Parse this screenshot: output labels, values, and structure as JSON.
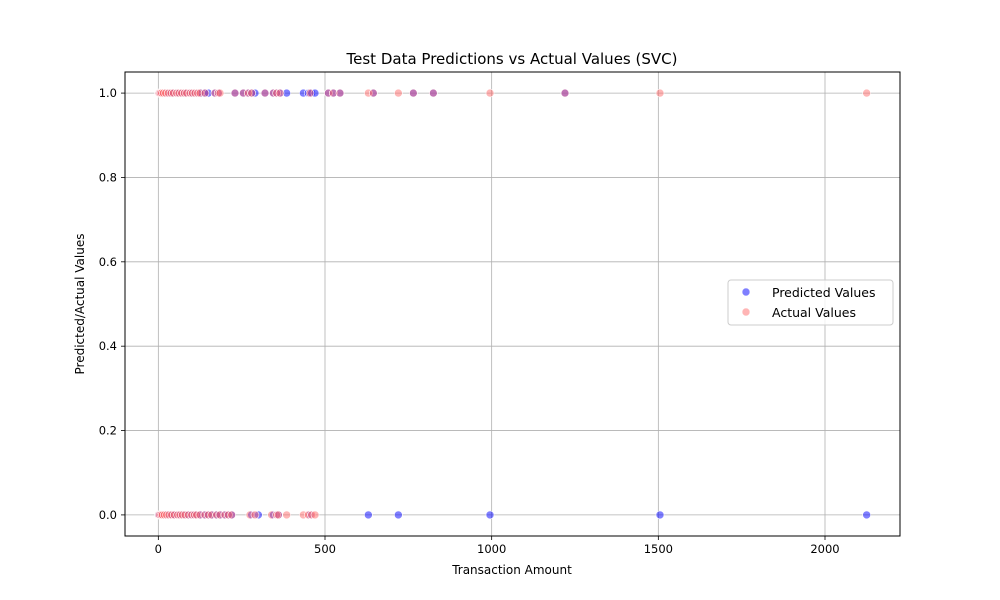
{
  "chart_data": {
    "type": "scatter",
    "title": "Test Data Predictions vs Actual Values (SVC)",
    "xlabel": "Transaction Amount",
    "ylabel": "Predicted/Actual Values",
    "xlim": [
      -100,
      2225
    ],
    "ylim": [
      -0.05,
      1.05
    ],
    "xticks": [
      0,
      500,
      1000,
      1500,
      2000
    ],
    "yticks": [
      0.0,
      0.2,
      0.4,
      0.6,
      0.8,
      1.0
    ],
    "xtick_labels": [
      "0",
      "500",
      "1000",
      "1500",
      "2000"
    ],
    "ytick_labels": [
      "0.0",
      "0.2",
      "0.4",
      "0.6",
      "0.8",
      "1.0"
    ],
    "grid": true,
    "legend_position": "center-right",
    "series": [
      {
        "name": "Predicted Values",
        "color": "#0000ff",
        "alpha": 0.5,
        "points": [
          [
            1,
            1
          ],
          [
            3,
            1
          ],
          [
            6,
            1
          ],
          [
            10,
            1
          ],
          [
            15,
            1
          ],
          [
            22,
            1
          ],
          [
            30,
            1
          ],
          [
            38,
            1
          ],
          [
            45,
            1
          ],
          [
            55,
            1
          ],
          [
            62,
            1
          ],
          [
            70,
            1
          ],
          [
            78,
            1
          ],
          [
            85,
            1
          ],
          [
            95,
            1
          ],
          [
            102,
            1
          ],
          [
            110,
            1
          ],
          [
            118,
            1
          ],
          [
            125,
            1
          ],
          [
            130,
            1
          ],
          [
            140,
            1
          ],
          [
            150,
            1
          ],
          [
            170,
            1
          ],
          [
            180,
            1
          ],
          [
            230,
            1
          ],
          [
            255,
            1
          ],
          [
            270,
            1
          ],
          [
            280,
            1
          ],
          [
            290,
            1
          ],
          [
            320,
            1
          ],
          [
            345,
            1
          ],
          [
            355,
            1
          ],
          [
            365,
            1
          ],
          [
            385,
            1
          ],
          [
            435,
            1
          ],
          [
            450,
            1
          ],
          [
            460,
            1
          ],
          [
            470,
            1
          ],
          [
            510,
            1
          ],
          [
            525,
            1
          ],
          [
            545,
            1
          ],
          [
            645,
            1
          ],
          [
            765,
            1
          ],
          [
            825,
            1
          ],
          [
            1220,
            1
          ],
          [
            1,
            0
          ],
          [
            4,
            0
          ],
          [
            8,
            0
          ],
          [
            12,
            0
          ],
          [
            18,
            0
          ],
          [
            25,
            0
          ],
          [
            32,
            0
          ],
          [
            40,
            0
          ],
          [
            48,
            0
          ],
          [
            58,
            0
          ],
          [
            65,
            0
          ],
          [
            72,
            0
          ],
          [
            80,
            0
          ],
          [
            90,
            0
          ],
          [
            100,
            0
          ],
          [
            108,
            0
          ],
          [
            115,
            0
          ],
          [
            125,
            0
          ],
          [
            140,
            0
          ],
          [
            150,
            0
          ],
          [
            160,
            0
          ],
          [
            175,
            0
          ],
          [
            185,
            0
          ],
          [
            200,
            0
          ],
          [
            210,
            0
          ],
          [
            220,
            0
          ],
          [
            280,
            0
          ],
          [
            300,
            0
          ],
          [
            345,
            0
          ],
          [
            360,
            0
          ],
          [
            455,
            0
          ],
          [
            630,
            0
          ],
          [
            720,
            0
          ],
          [
            995,
            0
          ],
          [
            1505,
            0
          ],
          [
            2125,
            0
          ]
        ]
      },
      {
        "name": "Actual Values",
        "color": "#ff6b6b",
        "alpha": 0.5,
        "points": [
          [
            1,
            1
          ],
          [
            3,
            1
          ],
          [
            6,
            1
          ],
          [
            10,
            1
          ],
          [
            15,
            1
          ],
          [
            22,
            1
          ],
          [
            30,
            1
          ],
          [
            38,
            1
          ],
          [
            45,
            1
          ],
          [
            55,
            1
          ],
          [
            62,
            1
          ],
          [
            70,
            1
          ],
          [
            78,
            1
          ],
          [
            85,
            1
          ],
          [
            95,
            1
          ],
          [
            102,
            1
          ],
          [
            110,
            1
          ],
          [
            118,
            1
          ],
          [
            125,
            1
          ],
          [
            140,
            1
          ],
          [
            170,
            1
          ],
          [
            180,
            1
          ],
          [
            185,
            1
          ],
          [
            230,
            1
          ],
          [
            255,
            1
          ],
          [
            270,
            1
          ],
          [
            280,
            1
          ],
          [
            320,
            1
          ],
          [
            345,
            1
          ],
          [
            355,
            1
          ],
          [
            365,
            1
          ],
          [
            455,
            1
          ],
          [
            510,
            1
          ],
          [
            525,
            1
          ],
          [
            545,
            1
          ],
          [
            630,
            1
          ],
          [
            645,
            1
          ],
          [
            720,
            1
          ],
          [
            765,
            1
          ],
          [
            825,
            1
          ],
          [
            995,
            1
          ],
          [
            1220,
            1
          ],
          [
            1505,
            1
          ],
          [
            2125,
            1
          ],
          [
            1,
            0
          ],
          [
            4,
            0
          ],
          [
            8,
            0
          ],
          [
            12,
            0
          ],
          [
            18,
            0
          ],
          [
            25,
            0
          ],
          [
            32,
            0
          ],
          [
            40,
            0
          ],
          [
            48,
            0
          ],
          [
            58,
            0
          ],
          [
            65,
            0
          ],
          [
            72,
            0
          ],
          [
            80,
            0
          ],
          [
            90,
            0
          ],
          [
            100,
            0
          ],
          [
            108,
            0
          ],
          [
            115,
            0
          ],
          [
            125,
            0
          ],
          [
            140,
            0
          ],
          [
            150,
            0
          ],
          [
            160,
            0
          ],
          [
            175,
            0
          ],
          [
            185,
            0
          ],
          [
            200,
            0
          ],
          [
            210,
            0
          ],
          [
            220,
            0
          ],
          [
            275,
            0
          ],
          [
            290,
            0
          ],
          [
            340,
            0
          ],
          [
            355,
            0
          ],
          [
            360,
            0
          ],
          [
            385,
            0
          ],
          [
            435,
            0
          ],
          [
            450,
            0
          ],
          [
            460,
            0
          ],
          [
            470,
            0
          ]
        ]
      }
    ]
  }
}
